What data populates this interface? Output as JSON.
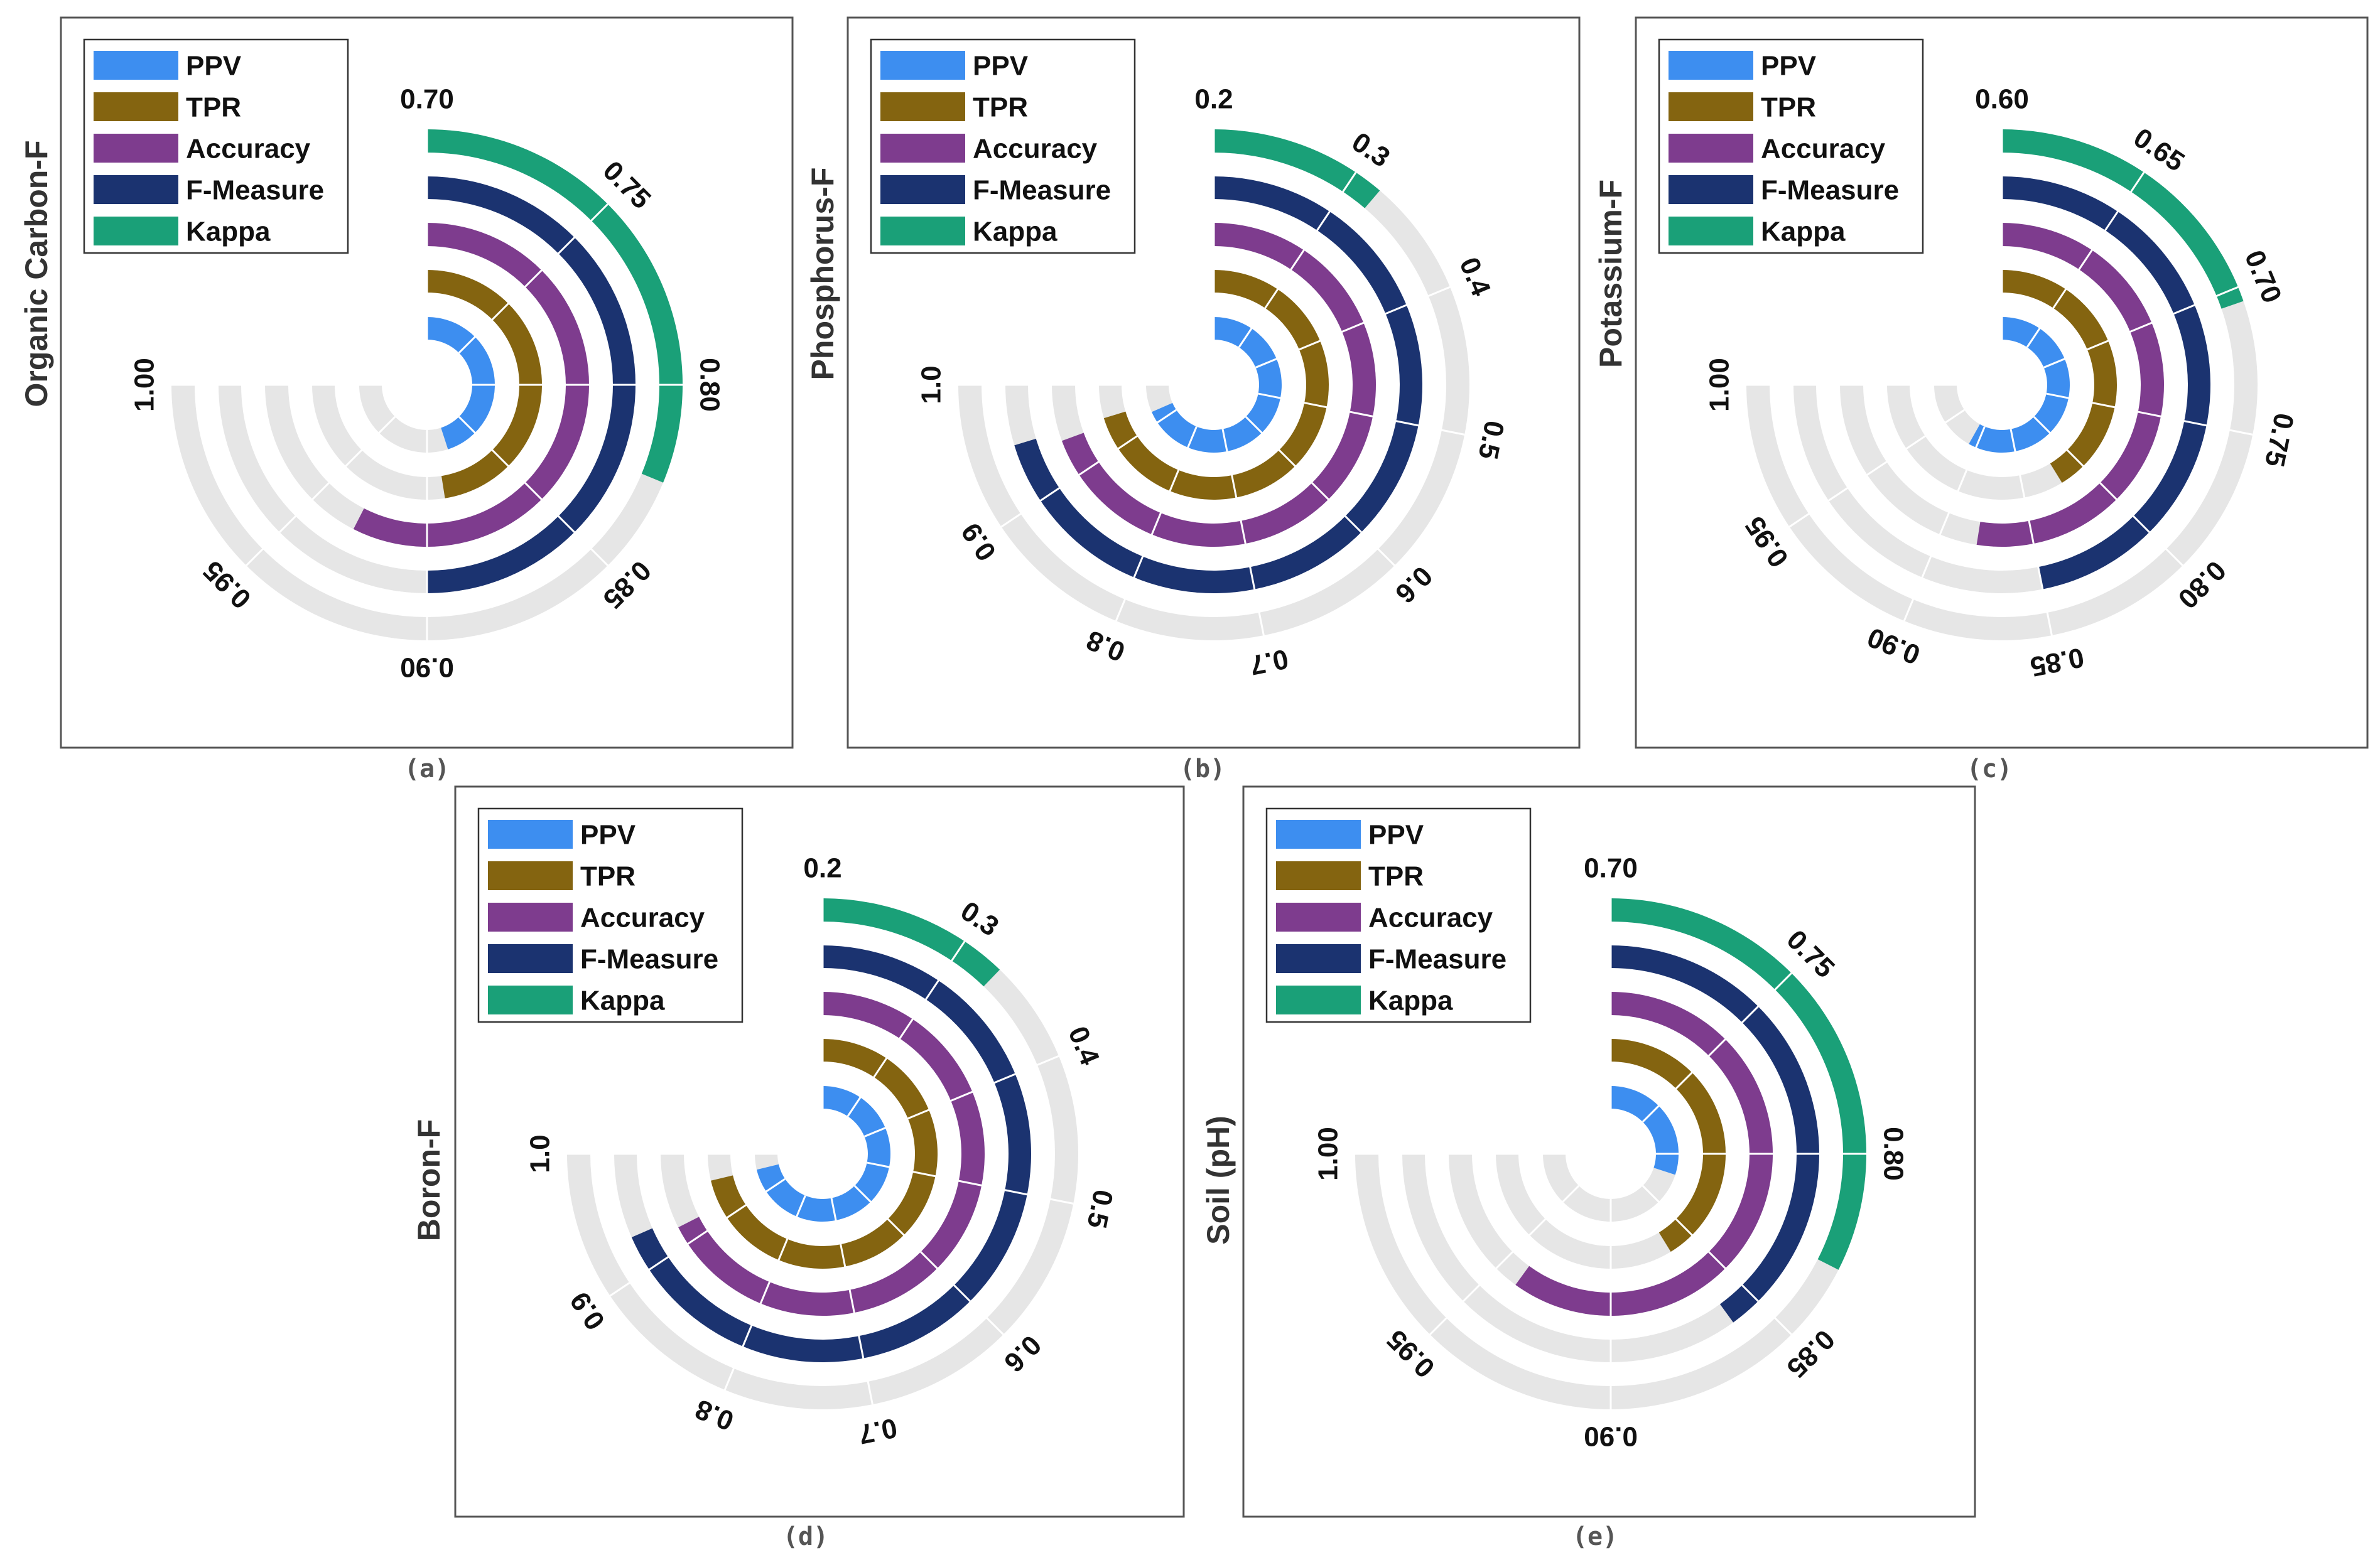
{
  "series_colors": {
    "PPV": "#3d8ef0",
    "TPR": "#846410",
    "Accuracy": "#7e3c8e",
    "F-Measure": "#1b3370",
    "Kappa": "#1aa078"
  },
  "chart_data": [
    {
      "type": "radial-bar",
      "panel": "(a)",
      "ylabel": "Organic Carbon-F",
      "legend": [
        "PPV",
        "TPR",
        "Accuracy",
        "F-Measure",
        "Kappa"
      ],
      "axis_range": [
        0.7,
        1.0
      ],
      "ticks": [
        "0.70",
        "0.75",
        "0.80",
        "0.85",
        "0.90",
        "0.95",
        "1.00"
      ],
      "series": [
        {
          "name": "PPV",
          "value": 0.88
        },
        {
          "name": "TPR",
          "value": 0.89
        },
        {
          "name": "Accuracy",
          "value": 0.93
        },
        {
          "name": "F-Measure",
          "value": 0.9
        },
        {
          "name": "Kappa",
          "value": 0.825
        }
      ]
    },
    {
      "type": "radial-bar",
      "panel": "(b)",
      "ylabel": "Phosphorus-F",
      "legend": [
        "PPV",
        "TPR",
        "Accuracy",
        "F-Measure",
        "Kappa"
      ],
      "axis_range": [
        0.2,
        1.0
      ],
      "ticks": [
        "0.2",
        "0.3",
        "0.4",
        "0.5",
        "0.6",
        "0.7",
        "0.8",
        "0.9",
        "1.0"
      ],
      "series": [
        {
          "name": "PPV",
          "value": 0.93
        },
        {
          "name": "TPR",
          "value": 0.95
        },
        {
          "name": "Accuracy",
          "value": 0.94
        },
        {
          "name": "F-Measure",
          "value": 0.95
        },
        {
          "name": "Kappa",
          "value": 0.32
        }
      ]
    },
    {
      "type": "radial-bar",
      "panel": "(c)",
      "ylabel": "Potassium-F",
      "legend": [
        "PPV",
        "TPR",
        "Accuracy",
        "F-Measure",
        "Kappa"
      ],
      "axis_range": [
        0.6,
        1.0
      ],
      "ticks": [
        "0.60",
        "0.65",
        "0.70",
        "0.75",
        "0.80",
        "0.85",
        "0.90",
        "0.95",
        "1.00"
      ],
      "series": [
        {
          "name": "PPV",
          "value": 0.91
        },
        {
          "name": "TPR",
          "value": 0.82
        },
        {
          "name": "Accuracy",
          "value": 0.88
        },
        {
          "name": "F-Measure",
          "value": 0.85
        },
        {
          "name": "Kappa",
          "value": 0.705
        }
      ]
    },
    {
      "type": "radial-bar",
      "panel": "(d)",
      "ylabel": "Boron-F",
      "legend": [
        "PPV",
        "TPR",
        "Accuracy",
        "F-Measure",
        "Kappa"
      ],
      "axis_range": [
        0.2,
        1.0
      ],
      "ticks": [
        "0.2",
        "0.3",
        "0.4",
        "0.5",
        "0.6",
        "0.7",
        "0.8",
        "0.9",
        "1.0"
      ],
      "series": [
        {
          "name": "PPV",
          "value": 0.96
        },
        {
          "name": "TPR",
          "value": 0.96
        },
        {
          "name": "Accuracy",
          "value": 0.92
        },
        {
          "name": "F-Measure",
          "value": 0.93
        },
        {
          "name": "Kappa",
          "value": 0.33
        }
      ]
    },
    {
      "type": "radial-bar",
      "panel": "(e)",
      "ylabel": "Soil (pH)",
      "legend": [
        "PPV",
        "TPR",
        "Accuracy",
        "F-Measure",
        "Kappa"
      ],
      "axis_range": [
        0.7,
        1.0
      ],
      "ticks": [
        "0.70",
        "0.75",
        "0.80",
        "0.85",
        "0.90",
        "0.95",
        "1.00"
      ],
      "series": [
        {
          "name": "PPV",
          "value": 0.82
        },
        {
          "name": "TPR",
          "value": 0.865
        },
        {
          "name": "Accuracy",
          "value": 0.94
        },
        {
          "name": "F-Measure",
          "value": 0.86
        },
        {
          "name": "Kappa",
          "value": 0.83
        }
      ]
    }
  ]
}
